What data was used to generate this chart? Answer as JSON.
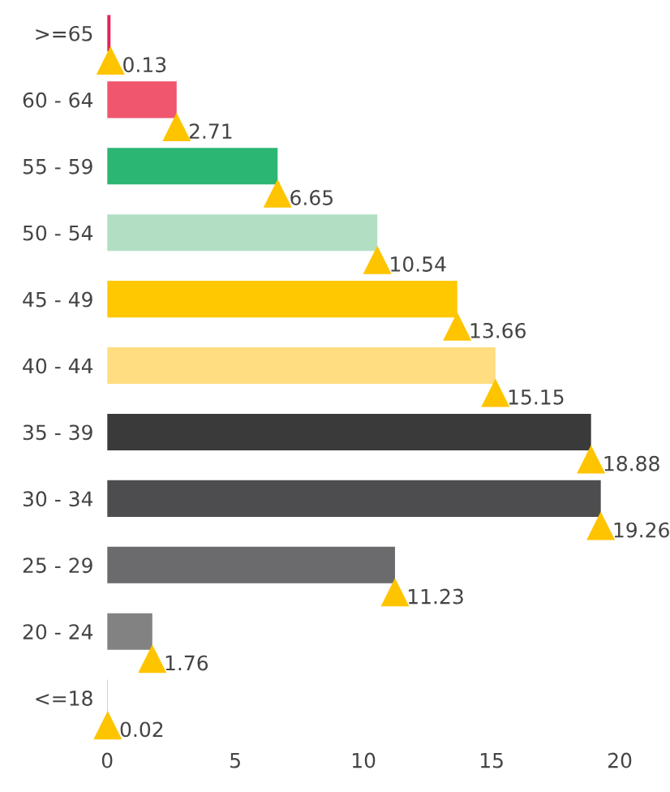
{
  "chart_data": {
    "type": "bar",
    "orientation": "horizontal",
    "categories": [
      ">=65",
      "60 - 64",
      "55 - 59",
      "50 - 54",
      "45 - 49",
      "40 - 44",
      "35 - 39",
      "30 - 34",
      "25 - 29",
      "20 - 24",
      "<=18"
    ],
    "values": [
      0.13,
      2.71,
      6.65,
      10.54,
      13.66,
      15.15,
      18.88,
      19.26,
      11.23,
      1.76,
      0.02
    ],
    "colors": [
      "#e0245e",
      "#f0566e",
      "#2bb673",
      "#b2dfc3",
      "#ffc800",
      "#ffdd80",
      "#3a3a3a",
      "#4d4d4f",
      "#6b6b6d",
      "#828282",
      "#aaaaaa"
    ],
    "xlim": [
      0,
      20
    ],
    "xticks": [
      0,
      5,
      10,
      15,
      20
    ],
    "data_labels": true,
    "grid": false,
    "legend": false
  }
}
